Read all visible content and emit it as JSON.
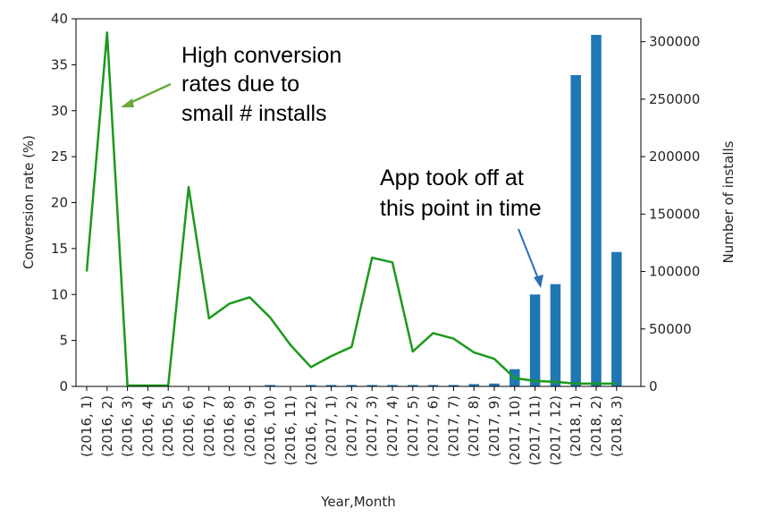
{
  "chart_data": {
    "type": "bar",
    "xlabel": "Year,Month",
    "ylabel_left": "Conversion rate (%)",
    "ylabel_right": "Number of installs",
    "categories": [
      "(2016, 1)",
      "(2016, 2)",
      "(2016, 3)",
      "(2016, 4)",
      "(2016, 5)",
      "(2016, 6)",
      "(2016, 7)",
      "(2016, 8)",
      "(2016, 9)",
      "(2016, 10)",
      "(2016, 11)",
      "(2016, 12)",
      "(2017, 1)",
      "(2017, 2)",
      "(2017, 3)",
      "(2017, 4)",
      "(2017, 5)",
      "(2017, 6)",
      "(2017, 7)",
      "(2017, 8)",
      "(2017, 9)",
      "(2017, 10)",
      "(2017, 11)",
      "(2017, 12)",
      "(2018, 1)",
      "(2018, 2)",
      "(2018, 3)"
    ],
    "left_ylim": [
      0,
      40
    ],
    "left_yticks": [
      "0",
      "5",
      "10",
      "15",
      "20",
      "25",
      "30",
      "35",
      "40"
    ],
    "right_ylim": [
      0,
      320000
    ],
    "right_yticks": [
      "0",
      "50000",
      "100000",
      "150000",
      "200000",
      "250000",
      "300000"
    ],
    "line_series": {
      "color": "#1a9a1a",
      "values": [
        12.5,
        38.5,
        0.1,
        0.1,
        0.1,
        21.7,
        7.4,
        9.0,
        9.7,
        7.5,
        4.5,
        2.1,
        3.3,
        4.3,
        14.0,
        13.5,
        3.8,
        5.8,
        5.2,
        3.7,
        3.0,
        0.9,
        0.6,
        0.5,
        0.3,
        0.3,
        0.3
      ]
    },
    "bar_series": {
      "color": "#1f77b4",
      "values": [
        0,
        0,
        0,
        0,
        0,
        0,
        0,
        0,
        0,
        500,
        0,
        600,
        700,
        800,
        900,
        900,
        1000,
        1000,
        1200,
        2000,
        2500,
        15000,
        80000,
        89000,
        271000,
        306000,
        117000
      ]
    },
    "annotations": [
      {
        "lines": [
          "High conversion",
          "rates due to",
          "small # installs"
        ],
        "arrow_color": "#6aaa3a"
      },
      {
        "lines": [
          "App took off at",
          "this point in time"
        ],
        "arrow_color": "#2e6db5"
      }
    ]
  }
}
